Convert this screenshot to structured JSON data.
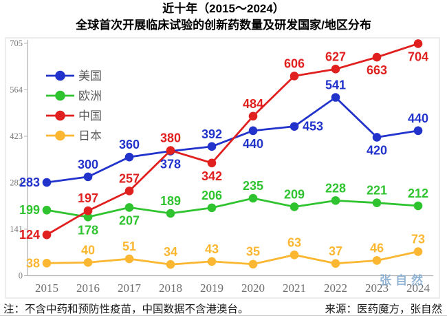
{
  "title": {
    "line1": "近十年（2015～2024）",
    "line2": "全球首次开展临床试验的创新药数量及研发国家/地区分布"
  },
  "footer": {
    "note": "注：不含中药和预防性疫苗，中国数据不含港澳台。",
    "source": "来源：医药魔方，张自然"
  },
  "watermark": "张自然",
  "colors": {
    "usa": "#2233CC",
    "europe": "#2FC42F",
    "china": "#E01F1F",
    "japan": "#FBB731",
    "axis": "#b4b4b4",
    "frame": "#d9d9d9",
    "tick_label": "#787878",
    "legend_text": "#595959",
    "watermark": "#7FA8CE"
  },
  "chart_data": {
    "type": "line",
    "title": "近十年（2015～2024）全球首次开展临床试验的创新药数量及研发国家/地区分布",
    "x": [
      "2015",
      "2016",
      "2017",
      "2018",
      "2019",
      "2020",
      "2021",
      "2022",
      "2023",
      "2024"
    ],
    "series": [
      {
        "name": "美国",
        "color": "#2233CC",
        "values": [
          283,
          300,
          360,
          378,
          392,
          440,
          453,
          541,
          420,
          440
        ],
        "label_pos": [
          "left",
          "above",
          "above",
          "below",
          "above",
          "below",
          "right",
          "above",
          "below",
          "above"
        ]
      },
      {
        "name": "欧洲",
        "color": "#2FC42F",
        "values": [
          199,
          178,
          207,
          189,
          206,
          235,
          209,
          228,
          221,
          212
        ],
        "label_pos": [
          "left",
          "below",
          "below",
          "above",
          "above",
          "above",
          "above",
          "above",
          "above",
          "above"
        ]
      },
      {
        "name": "中国",
        "color": "#E01F1F",
        "values": [
          124,
          197,
          257,
          380,
          342,
          484,
          606,
          627,
          663,
          704
        ],
        "label_pos": [
          "left",
          "above",
          "above",
          "above",
          "below",
          "above",
          "above",
          "above",
          "below",
          "below"
        ]
      },
      {
        "name": "日本",
        "color": "#FBB731",
        "values": [
          38,
          40,
          51,
          34,
          43,
          35,
          63,
          37,
          46,
          73
        ],
        "label_pos": [
          "left",
          "above",
          "above",
          "above",
          "above",
          "above",
          "above",
          "above",
          "above",
          "above"
        ]
      }
    ],
    "draw_order": [
      0,
      1,
      3,
      2
    ],
    "ylim": [
      0,
      705
    ],
    "yticks": [
      0,
      141,
      282,
      423,
      564,
      705
    ],
    "xlabel": "",
    "ylabel": "",
    "legend_position": "upper-left",
    "grid": false
  }
}
